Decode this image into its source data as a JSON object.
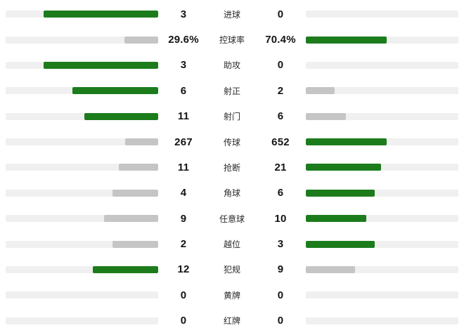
{
  "colors": {
    "win": "#1c7c1c",
    "lose": "#c5c5c5",
    "track": "#f0f0f0"
  },
  "layout": {
    "max_bar_pct": 75
  },
  "rows": [
    {
      "label": "进球",
      "left": {
        "text": "3",
        "value": 3
      },
      "right": {
        "text": "0",
        "value": 0
      }
    },
    {
      "label": "控球率",
      "left": {
        "text": "29.6%",
        "value": 29.6
      },
      "right": {
        "text": "70.4%",
        "value": 70.4
      }
    },
    {
      "label": "助攻",
      "left": {
        "text": "3",
        "value": 3
      },
      "right": {
        "text": "0",
        "value": 0
      }
    },
    {
      "label": "射正",
      "left": {
        "text": "6",
        "value": 6
      },
      "right": {
        "text": "2",
        "value": 2
      }
    },
    {
      "label": "射门",
      "left": {
        "text": "11",
        "value": 11
      },
      "right": {
        "text": "6",
        "value": 6
      }
    },
    {
      "label": "传球",
      "left": {
        "text": "267",
        "value": 267
      },
      "right": {
        "text": "652",
        "value": 652
      }
    },
    {
      "label": "抢断",
      "left": {
        "text": "11",
        "value": 11
      },
      "right": {
        "text": "21",
        "value": 21
      }
    },
    {
      "label": "角球",
      "left": {
        "text": "4",
        "value": 4
      },
      "right": {
        "text": "6",
        "value": 6
      }
    },
    {
      "label": "任意球",
      "left": {
        "text": "9",
        "value": 9
      },
      "right": {
        "text": "10",
        "value": 10
      }
    },
    {
      "label": "越位",
      "left": {
        "text": "2",
        "value": 2
      },
      "right": {
        "text": "3",
        "value": 3
      }
    },
    {
      "label": "犯规",
      "left": {
        "text": "12",
        "value": 12
      },
      "right": {
        "text": "9",
        "value": 9
      }
    },
    {
      "label": "黄牌",
      "left": {
        "text": "0",
        "value": 0
      },
      "right": {
        "text": "0",
        "value": 0
      }
    },
    {
      "label": "红牌",
      "left": {
        "text": "0",
        "value": 0
      },
      "right": {
        "text": "0",
        "value": 0
      }
    }
  ],
  "chart_data": {
    "type": "bar",
    "subtype": "butterfly-comparison",
    "title": "",
    "categories": [
      "进球",
      "控球率",
      "助攻",
      "射正",
      "射门",
      "传球",
      "抢断",
      "角球",
      "任意球",
      "越位",
      "犯规",
      "黄牌",
      "红牌"
    ],
    "series": [
      {
        "name": "left-team",
        "values": [
          3,
          29.6,
          3,
          6,
          11,
          267,
          11,
          4,
          9,
          2,
          12,
          0,
          0
        ]
      },
      {
        "name": "right-team",
        "values": [
          0,
          70.4,
          0,
          2,
          6,
          652,
          21,
          6,
          10,
          3,
          9,
          0,
          0
        ]
      }
    ],
    "legend_position": "none",
    "grid": false,
    "notes": "Bar length proportional to value / (left+right); higher value drawn green, lower gray, ties (0-0) no bar"
  }
}
